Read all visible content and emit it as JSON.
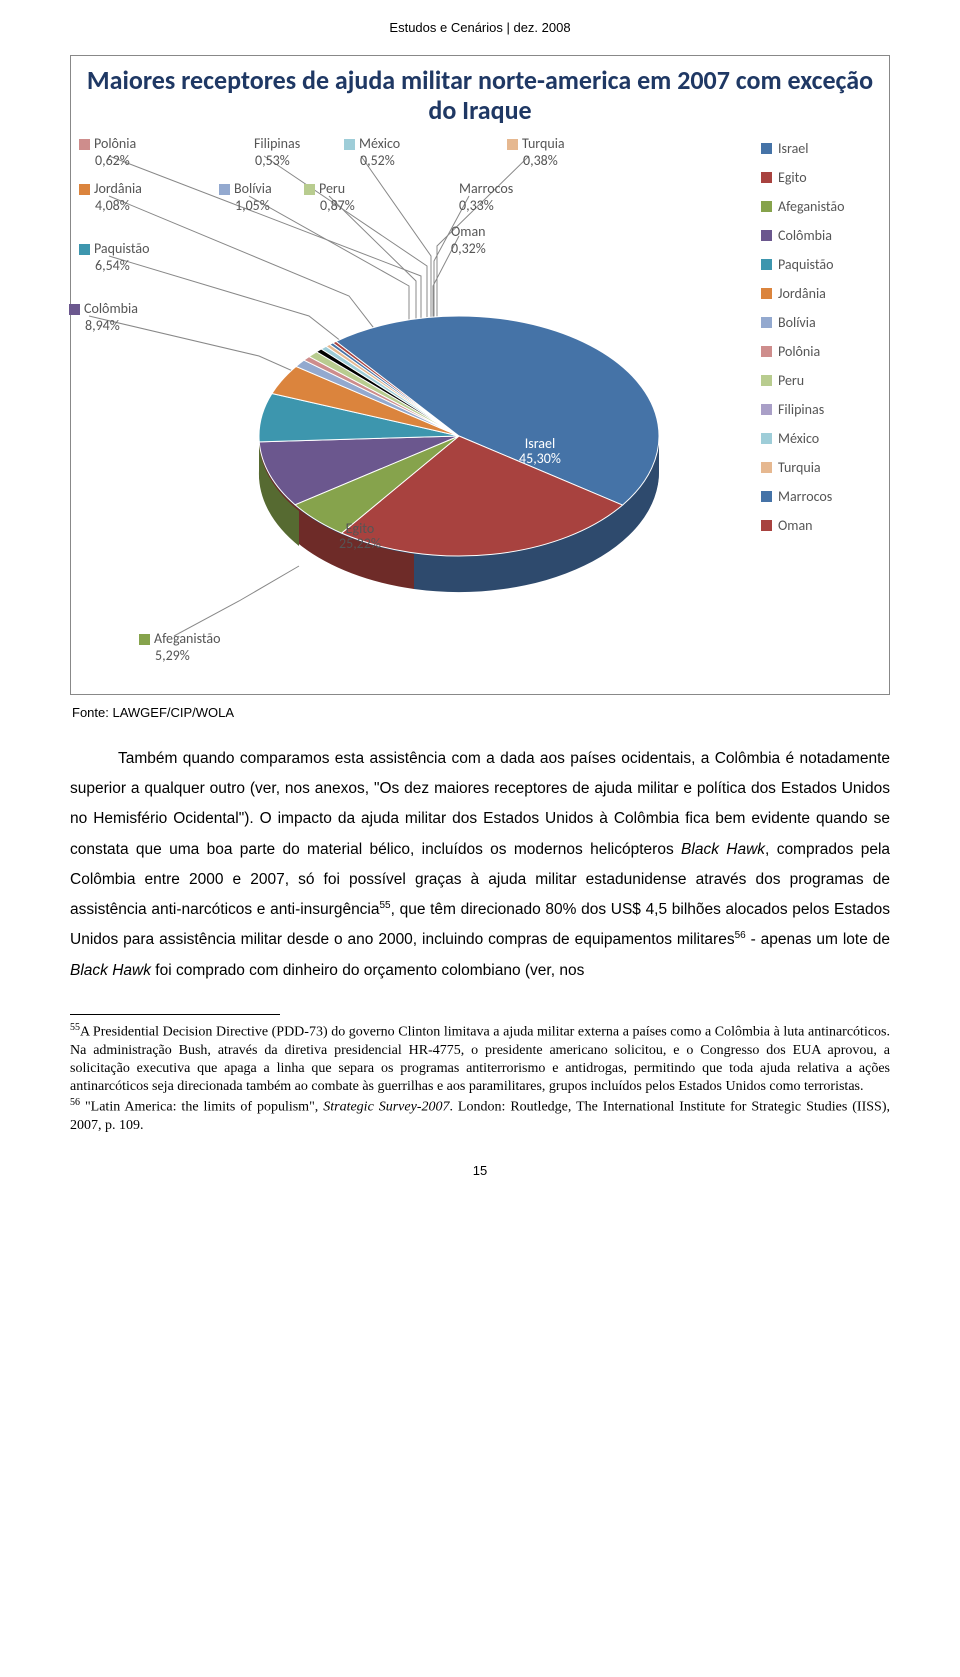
{
  "header": "Estudos e Cenários | dez. 2008",
  "chart": {
    "type": "pie-3d",
    "title": "Maiores receptores de ajuda militar norte-america em 2007 com exceção do Iraque",
    "title_color": "#1f3864",
    "title_fontsize": 26,
    "background_color": "#ffffff",
    "border_color": "#888888",
    "label_fontsize": 14,
    "label_color": "#595959",
    "leader_color": "#888888",
    "slices": [
      {
        "name": "Israel",
        "value": 45.3,
        "label": "Israel",
        "pct": "45,30%",
        "color": "#4573a7",
        "side_color": "#2e4a6d"
      },
      {
        "name": "Egito",
        "value": 25.22,
        "label": "Egito",
        "pct": "25,22%",
        "color": "#a8423f",
        "side_color": "#6e2b28"
      },
      {
        "name": "Afeganistão",
        "value": 5.29,
        "label": "Afeganistão",
        "pct": "5,29%",
        "color": "#86a34c",
        "side_color": "#566a31"
      },
      {
        "name": "Colômbia",
        "value": 8.94,
        "label": "Colômbia",
        "pct": "8,94%",
        "color": "#6b578e",
        "side_color": "#45385c"
      },
      {
        "name": "Paquistão",
        "value": 6.54,
        "label": "Paquistão",
        "pct": "6,54%",
        "color": "#3d96ae",
        "side_color": "#276172"
      },
      {
        "name": "Jordânia",
        "value": 4.08,
        "label": "Jordânia",
        "pct": "4,08%",
        "color": "#db843d",
        "side_color": "#8f5627"
      },
      {
        "name": "Bolívia",
        "value": 1.05,
        "label": "Bolívia",
        "pct": "1,05%",
        "color": "#93a9cf",
        "side_color": "#5f6e87"
      },
      {
        "name": "Polônia",
        "value": 0.62,
        "label": "Polônia",
        "pct": "0,62%",
        "color": "#ce8d8c",
        "side_color": "#865b5a"
      },
      {
        "name": "Peru",
        "value": 0.87,
        "label": "Peru",
        "pct": "0,87%",
        "color": "#b8cc8f",
        "side_color": "#78855d"
      },
      {
        "name": "Filipinas",
        "value": 0.53,
        "label": "Filipinas",
        "pct": "0,53%",
        "color": "#a BA0c7",
        "side_color": "#6b6381"
      },
      {
        "name": "México",
        "value": 0.52,
        "label": "México",
        "pct": "0,52%",
        "color": "#9ECDD8",
        "side_color": "#5f7e85"
      },
      {
        "name": "Turquia",
        "value": 0.38,
        "label": "Turquia",
        "pct": "0,38%",
        "color": "#e6b890",
        "side_color": "#96785d"
      },
      {
        "name": "Marrocos",
        "value": 0.33,
        "label": "Marrocos",
        "pct": "0,33%",
        "color": "#4573a7",
        "side_color": "#2e4a6d"
      },
      {
        "name": "Oman",
        "value": 0.32,
        "label": "Oman",
        "pct": "0,32%",
        "color": "#a8423f",
        "side_color": "#6e2b28"
      }
    ],
    "legend_items": [
      {
        "label": "Israel",
        "color": "#4573a7"
      },
      {
        "label": "Egito",
        "color": "#a8423f"
      },
      {
        "label": "Afeganistão",
        "color": "#86a34c"
      },
      {
        "label": "Colômbia",
        "color": "#6b578e"
      },
      {
        "label": "Paquistão",
        "color": "#3d96ae"
      },
      {
        "label": "Jordânia",
        "color": "#db843d"
      },
      {
        "label": "Bolívia",
        "color": "#93a9cf"
      },
      {
        "label": "Polônia",
        "color": "#ce8d8c"
      },
      {
        "label": "Peru",
        "color": "#b8cc8f"
      },
      {
        "label": "Filipinas",
        "color": "#a99fc7"
      },
      {
        "label": "México",
        "color": "#9ecdd8"
      },
      {
        "label": "Turquia",
        "color": "#e6b890"
      },
      {
        "label": "Marrocos",
        "color": "#4573a7"
      },
      {
        "label": "Oman",
        "color": "#a8423f"
      }
    ]
  },
  "source": "Fonte: LAWGEF/CIP/WOLA",
  "body": {
    "para1": "Também quando comparamos esta assistência com a dada aos países ocidentais, a Colômbia é notadamente superior a qualquer outro (ver, nos anexos, \"Os dez maiores receptores de ajuda militar e política dos Estados Unidos no Hemisfério Ocidental\"). O impacto da ajuda militar dos Estados Unidos à Colômbia fica bem evidente quando se constata que uma boa parte do material bélico, incluídos os modernos helicópteros ",
    "it1": "Black Hawk",
    "para1b": ", comprados pela Colômbia entre 2000 e 2007, só foi possível graças à ajuda militar estadunidense através dos programas de assistência anti-narcóticos e anti-insurgência",
    "fn55": "55",
    "para1c": ", que têm direcionado 80% dos US$ 4,5 bilhões alocados pelos Estados Unidos para assistência militar desde o ano 2000, incluindo compras de equipamentos militares",
    "fn56": "56",
    "para1d": " - apenas um lote de ",
    "it2": "Black Hawk",
    "para1e": " foi comprado com dinheiro do orçamento colombiano (ver, nos"
  },
  "footnotes": {
    "n55": "A Presidential Decision Directive (PDD-73) do governo Clinton limitava a ajuda militar externa a países como a Colômbia à luta antinarcóticos. Na administração Bush, através da diretiva presidencial HR-4775, o presidente americano solicitou, e o Congresso dos EUA aprovou, a solicitação executiva que apaga a linha que separa os programas antiterrorismo e antidrogas, permitindo que toda ajuda relativa a ações antinarcóticos seja direcionada também ao combate às guerrilhas e aos paramilitares, grupos incluídos pelos Estados Unidos como terroristas.",
    "n56_a": " \"Latin America: the limits of populism\", ",
    "n56_it": "Strategic Survey-2007",
    "n56_b": ". London: Routledge, The International Institute for Strategic Studies (IISS), 2007, p. 109."
  },
  "page": "15"
}
